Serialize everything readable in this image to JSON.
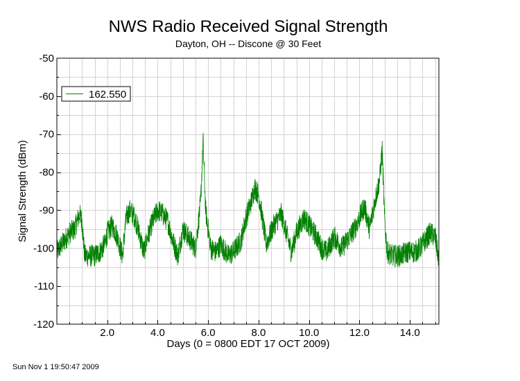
{
  "chart_data": {
    "type": "line",
    "title": "NWS Radio Received Signal Strength",
    "subtitle": "Dayton, OH -- Discone @ 30 Feet",
    "xlabel": "Days (0 = 0800 EDT 17 OCT 2009)",
    "ylabel": "Signal Strength (dBm)",
    "xlim": [
      0.0,
      15.15
    ],
    "ylim": [
      -120,
      -50
    ],
    "x_ticks": [
      2.0,
      4.0,
      6.0,
      8.0,
      10.0,
      12.0,
      14.0
    ],
    "x_tick_labels": [
      "2.0",
      "4.0",
      "6.0",
      "8.0",
      "10.0",
      "12.0",
      "14.0"
    ],
    "y_ticks": [
      -50,
      -60,
      -70,
      -80,
      -90,
      -100,
      -110,
      -120
    ],
    "y_tick_labels": [
      "-50",
      "-60",
      "-70",
      "-80",
      "-90",
      "-100",
      "-110",
      "-120"
    ],
    "grid": true,
    "legend_position": "top-left",
    "series": [
      {
        "name": "162.550",
        "color": "#008000",
        "noise_amplitude": 3,
        "x": [
          0.0,
          0.3,
          0.5,
          0.7,
          0.9,
          1.0,
          1.1,
          1.3,
          1.5,
          1.7,
          1.9,
          2.0,
          2.2,
          2.4,
          2.6,
          2.75,
          2.9,
          3.1,
          3.3,
          3.45,
          3.6,
          3.8,
          4.0,
          4.2,
          4.4,
          4.6,
          4.8,
          5.0,
          5.2,
          5.5,
          5.7,
          5.8,
          5.9,
          6.1,
          6.3,
          6.5,
          6.8,
          7.0,
          7.3,
          7.5,
          7.7,
          7.85,
          8.0,
          8.1,
          8.3,
          8.6,
          8.9,
          9.1,
          9.3,
          9.5,
          9.8,
          10.0,
          10.3,
          10.5,
          10.7,
          11.0,
          11.3,
          11.5,
          11.8,
          12.0,
          12.2,
          12.4,
          12.6,
          12.8,
          12.9,
          13.0,
          13.1,
          13.3,
          13.6,
          13.9,
          14.2,
          14.4,
          14.6,
          14.8,
          15.0,
          15.15
        ],
        "y": [
          -101,
          -98,
          -96,
          -95,
          -91,
          -93,
          -102,
          -102,
          -102,
          -101,
          -99,
          -96,
          -94,
          -97,
          -102,
          -92,
          -90,
          -92,
          -97,
          -101,
          -97,
          -93,
          -90,
          -91,
          -93,
          -98,
          -102,
          -95,
          -97,
          -100,
          -88,
          -72,
          -90,
          -100,
          -101,
          -99,
          -102,
          -101,
          -98,
          -92,
          -88,
          -84,
          -86,
          -90,
          -99,
          -94,
          -91,
          -96,
          -101,
          -96,
          -92,
          -94,
          -97,
          -100,
          -101,
          -97,
          -100,
          -98,
          -95,
          -92,
          -89,
          -95,
          -88,
          -82,
          -74,
          -93,
          -101,
          -102,
          -102,
          -101,
          -101,
          -100,
          -98,
          -96,
          -97,
          -103
        ]
      }
    ]
  },
  "footer": {
    "timestamp": "Sun Nov  1 19:50:47 2009"
  }
}
